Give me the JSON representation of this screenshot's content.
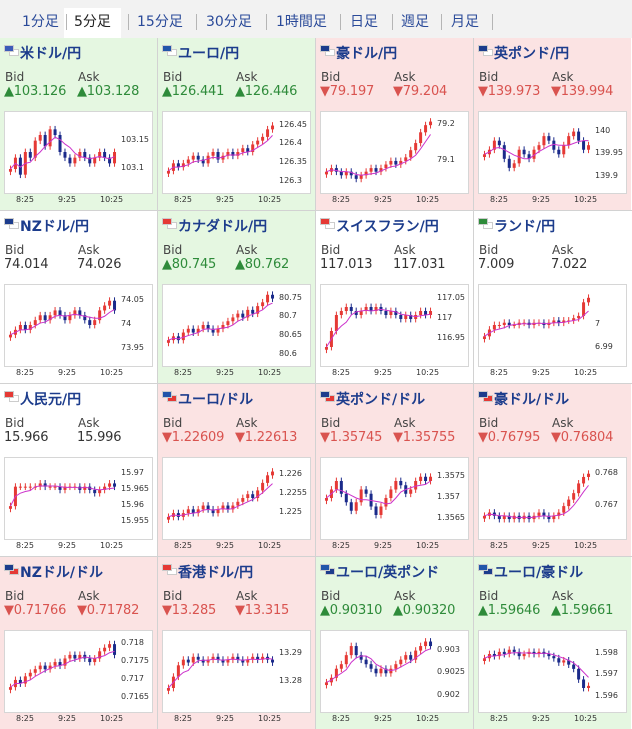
{
  "tabs": [
    {
      "label": "1分足",
      "active": false
    },
    {
      "label": "5分足",
      "active": true
    },
    {
      "label": "15分足",
      "active": false
    },
    {
      "label": "30分足",
      "active": false
    },
    {
      "label": "1時間足",
      "active": false
    },
    {
      "label": "日足",
      "active": false
    },
    {
      "label": "週足",
      "active": false
    },
    {
      "label": "月足",
      "active": false
    }
  ],
  "labels": {
    "bid": "Bid",
    "ask": "Ask"
  },
  "colors": {
    "up_bg": "#e5f7e1",
    "down_bg": "#fbe3e3",
    "up_text": "#2e8b3a",
    "down_text": "#d9534f",
    "candle_up": "#e53935",
    "candle_down": "#1a2a8a",
    "ma_line": "#cc33cc",
    "link": "#1c3c8c"
  },
  "pairs": [
    {
      "name": "米ドル/円",
      "flags": [
        "#3c5bb8",
        "#ffffff"
      ],
      "dir": "up",
      "bid": "▲103.126",
      "ask": "▲103.128",
      "chart_data": {
        "type": "candlestick",
        "x_ticks": [
          "8:25",
          "9:25",
          "10:25"
        ],
        "y_ticks": [
          "103.15",
          "103.1"
        ],
        "y_tick_values": [
          103.15,
          103.1
        ],
        "ylim": [
          103.07,
          103.19
        ],
        "series": [
          103.1,
          103.12,
          103.09,
          103.13,
          103.12,
          103.15,
          103.16,
          103.14,
          103.17,
          103.16,
          103.13,
          103.12,
          103.11,
          103.12,
          103.13,
          103.12,
          103.11,
          103.12,
          103.13,
          103.12,
          103.11,
          103.13
        ]
      }
    },
    {
      "name": "ユーロ/円",
      "flags": [
        "#2255aa",
        "#ffffff"
      ],
      "dir": "up",
      "bid": "▲126.441",
      "ask": "▲126.446",
      "chart_data": {
        "type": "candlestick",
        "x_ticks": [
          "8:25",
          "9:25",
          "10:25"
        ],
        "y_ticks": [
          "126.45",
          "126.4",
          "126.35",
          "126.3"
        ],
        "y_tick_values": [
          126.45,
          126.4,
          126.35,
          126.3
        ],
        "ylim": [
          126.29,
          126.47
        ],
        "series": [
          126.33,
          126.35,
          126.34,
          126.35,
          126.36,
          126.37,
          126.36,
          126.35,
          126.37,
          126.38,
          126.36,
          126.37,
          126.38,
          126.37,
          126.38,
          126.39,
          126.38,
          126.4,
          126.41,
          126.42,
          126.44,
          126.45
        ]
      }
    },
    {
      "name": "豪ドル/円",
      "flags": [
        "#1c3c8c",
        "#ffffff"
      ],
      "dir": "down",
      "bid": "▼79.197",
      "ask": "▼79.204",
      "chart_data": {
        "type": "candlestick",
        "x_ticks": [
          "8:25",
          "9:25",
          "10:25"
        ],
        "y_ticks": [
          "79.2",
          "79.1"
        ],
        "y_tick_values": [
          79.2,
          79.1
        ],
        "ylim": [
          79.03,
          79.22
        ],
        "series": [
          79.07,
          79.08,
          79.07,
          79.06,
          79.07,
          79.06,
          79.05,
          79.06,
          79.07,
          79.08,
          79.07,
          79.08,
          79.09,
          79.1,
          79.09,
          79.1,
          79.11,
          79.13,
          79.15,
          79.18,
          79.2,
          79.21
        ]
      }
    },
    {
      "name": "英ポンド/円",
      "flags": [
        "#1c3c8c",
        "#ffffff"
      ],
      "dir": "down",
      "bid": "▼139.973",
      "ask": "▼139.994",
      "chart_data": {
        "type": "candlestick",
        "x_ticks": [
          "8:25",
          "9:25",
          "10:25"
        ],
        "y_ticks": [
          "140",
          "139.95",
          "139.9"
        ],
        "y_tick_values": [
          140.0,
          139.95,
          139.9
        ],
        "ylim": [
          139.88,
          140.03
        ],
        "series": [
          139.95,
          139.96,
          139.98,
          139.97,
          139.94,
          139.92,
          139.93,
          139.96,
          139.95,
          139.94,
          139.96,
          139.97,
          139.99,
          139.98,
          139.96,
          139.95,
          139.97,
          139.99,
          140.0,
          139.98,
          139.96,
          139.97
        ]
      }
    },
    {
      "name": "NZドル/円",
      "flags": [
        "#1c3c8c",
        "#ffffff"
      ],
      "dir": "flat",
      "bid": "74.014",
      "ask": "74.026",
      "chart_data": {
        "type": "candlestick",
        "x_ticks": [
          "8:25",
          "9:25",
          "10:25"
        ],
        "y_ticks": [
          "74.05",
          "74",
          "73.95"
        ],
        "y_tick_values": [
          74.05,
          74.0,
          73.95
        ],
        "ylim": [
          73.93,
          74.07
        ],
        "series": [
          73.98,
          73.99,
          74.0,
          73.99,
          74.0,
          74.01,
          74.02,
          74.01,
          74.02,
          74.03,
          74.02,
          74.01,
          74.02,
          74.03,
          74.02,
          74.01,
          74.0,
          74.01,
          74.03,
          74.04,
          74.05,
          74.03
        ]
      }
    },
    {
      "name": "カナダドル/円",
      "flags": [
        "#e53935",
        "#ffffff"
      ],
      "dir": "up",
      "bid": "▲80.745",
      "ask": "▲80.762",
      "chart_data": {
        "type": "candlestick",
        "x_ticks": [
          "8:25",
          "9:25",
          "10:25"
        ],
        "y_ticks": [
          "80.75",
          "80.7",
          "80.65",
          "80.6"
        ],
        "y_tick_values": [
          80.75,
          80.7,
          80.65,
          80.6
        ],
        "ylim": [
          80.59,
          80.77
        ],
        "series": [
          80.64,
          80.65,
          80.64,
          80.66,
          80.67,
          80.66,
          80.67,
          80.68,
          80.67,
          80.66,
          80.67,
          80.68,
          80.69,
          80.7,
          80.71,
          80.7,
          80.72,
          80.71,
          80.73,
          80.74,
          80.76,
          80.75
        ]
      }
    },
    {
      "name": "スイスフラン/円",
      "flags": [
        "#e53935",
        "#ffffff"
      ],
      "dir": "flat",
      "bid": "117.013",
      "ask": "117.031",
      "chart_data": {
        "type": "candlestick",
        "x_ticks": [
          "8:25",
          "9:25",
          "10:25"
        ],
        "y_ticks": [
          "117.05",
          "117",
          "116.95"
        ],
        "y_tick_values": [
          117.05,
          117.0,
          116.95
        ],
        "ylim": [
          116.9,
          117.07
        ],
        "series": [
          116.93,
          116.97,
          117.01,
          117.02,
          117.03,
          117.02,
          117.01,
          117.02,
          117.03,
          117.02,
          117.03,
          117.02,
          117.01,
          117.02,
          117.01,
          117.0,
          117.01,
          117.0,
          117.01,
          117.02,
          117.01,
          117.02
        ]
      }
    },
    {
      "name": "ランド/円",
      "flags": [
        "#2e8b3a",
        "#ffffff"
      ],
      "dir": "flat",
      "bid": "7.009",
      "ask": "7.022",
      "chart_data": {
        "type": "candlestick",
        "x_ticks": [
          "8:25",
          "9:25",
          "10:25"
        ],
        "y_ticks": [
          "7",
          "6.99"
        ],
        "y_tick_values": [
          7.0,
          6.99
        ],
        "ylim": [
          6.985,
          7.015
        ],
        "series": [
          6.995,
          6.998,
          7.0,
          7.0,
          7.001,
          7.0,
          7.0,
          7.001,
          7.001,
          7.0,
          7.001,
          7.001,
          7.0,
          7.001,
          7.002,
          7.001,
          7.002,
          7.002,
          7.003,
          7.004,
          7.01,
          7.012
        ]
      }
    },
    {
      "name": "人民元/円",
      "flags": [
        "#e53935",
        "#ffffff"
      ],
      "dir": "flat",
      "bid": "15.966",
      "ask": "15.996",
      "chart_data": {
        "type": "candlestick",
        "x_ticks": [
          "8:25",
          "9:25",
          "10:25"
        ],
        "y_ticks": [
          "15.97",
          "15.965",
          "15.96",
          "15.955"
        ],
        "y_tick_values": [
          15.97,
          15.965,
          15.96,
          15.955
        ],
        "ylim": [
          15.952,
          15.973
        ],
        "series": [
          15.96,
          15.966,
          15.966,
          15.966,
          15.966,
          15.966,
          15.967,
          15.966,
          15.966,
          15.966,
          15.965,
          15.966,
          15.966,
          15.966,
          15.965,
          15.966,
          15.965,
          15.964,
          15.965,
          15.966,
          15.967,
          15.966
        ]
      }
    },
    {
      "name": "ユーロ/ドル",
      "flags": [
        "#2255aa",
        "#e53935"
      ],
      "dir": "down",
      "bid": "▼1.22609",
      "ask": "▼1.22613",
      "chart_data": {
        "type": "candlestick",
        "x_ticks": [
          "8:25",
          "9:25",
          "10:25"
        ],
        "y_ticks": [
          "1.226",
          "1.2255",
          "1.225"
        ],
        "y_tick_values": [
          1.226,
          1.2255,
          1.225
        ],
        "ylim": [
          1.2245,
          1.2263
        ],
        "series": [
          1.2249,
          1.225,
          1.2249,
          1.225,
          1.2251,
          1.225,
          1.2251,
          1.2252,
          1.2251,
          1.225,
          1.2251,
          1.2252,
          1.2251,
          1.2252,
          1.2253,
          1.2254,
          1.2255,
          1.2254,
          1.2256,
          1.2258,
          1.226,
          1.2261
        ]
      }
    },
    {
      "name": "英ポンド/ドル",
      "flags": [
        "#1c3c8c",
        "#e53935"
      ],
      "dir": "down",
      "bid": "▼1.35745",
      "ask": "▼1.35755",
      "chart_data": {
        "type": "candlestick",
        "x_ticks": [
          "8:25",
          "9:25",
          "10:25"
        ],
        "y_ticks": [
          "1.3575",
          "1.357",
          "1.3565"
        ],
        "y_tick_values": [
          1.3575,
          1.357,
          1.3565
        ],
        "ylim": [
          1.3562,
          1.3578
        ],
        "series": [
          1.357,
          1.3572,
          1.3574,
          1.3571,
          1.3569,
          1.3567,
          1.3569,
          1.3572,
          1.3571,
          1.3568,
          1.3566,
          1.3568,
          1.357,
          1.3572,
          1.3574,
          1.3573,
          1.3571,
          1.3572,
          1.3574,
          1.3575,
          1.3574,
          1.3575
        ]
      }
    },
    {
      "name": "豪ドル/ドル",
      "flags": [
        "#1c3c8c",
        "#e53935"
      ],
      "dir": "down",
      "bid": "▼0.76795",
      "ask": "▼0.76804",
      "chart_data": {
        "type": "candlestick",
        "x_ticks": [
          "8:25",
          "9:25",
          "10:25"
        ],
        "y_ticks": [
          "0.768",
          "0.767"
        ],
        "y_tick_values": [
          0.768,
          0.767
        ],
        "ylim": [
          0.7662,
          0.7683
        ],
        "series": [
          0.7667,
          0.7668,
          0.7667,
          0.7666,
          0.7667,
          0.7666,
          0.7667,
          0.7666,
          0.7667,
          0.7666,
          0.7667,
          0.7668,
          0.7667,
          0.7666,
          0.7667,
          0.7668,
          0.767,
          0.7672,
          0.7674,
          0.7677,
          0.7679,
          0.768
        ]
      }
    },
    {
      "name": "NZドル/ドル",
      "flags": [
        "#1c3c8c",
        "#e53935"
      ],
      "dir": "down",
      "bid": "▼0.71766",
      "ask": "▼0.71782",
      "chart_data": {
        "type": "candlestick",
        "x_ticks": [
          "8:25",
          "9:25",
          "10:25"
        ],
        "y_ticks": [
          "0.718",
          "0.7175",
          "0.717",
          "0.7165"
        ],
        "y_tick_values": [
          0.718,
          0.7175,
          0.717,
          0.7165
        ],
        "ylim": [
          0.7163,
          0.7182
        ],
        "series": [
          0.7168,
          0.717,
          0.7169,
          0.7171,
          0.7172,
          0.7173,
          0.7174,
          0.7173,
          0.7174,
          0.7175,
          0.7174,
          0.7176,
          0.7177,
          0.7176,
          0.7177,
          0.7176,
          0.7175,
          0.7176,
          0.7178,
          0.7179,
          0.718,
          0.7177
        ]
      }
    },
    {
      "name": "香港ドル/円",
      "flags": [
        "#e53935",
        "#ffffff"
      ],
      "dir": "down",
      "bid": "▼13.285",
      "ask": "▼13.315",
      "chart_data": {
        "type": "candlestick",
        "x_ticks": [
          "8:25",
          "9:25",
          "10:25"
        ],
        "y_ticks": [
          "13.29",
          "13.28"
        ],
        "y_tick_values": [
          13.29,
          13.28
        ],
        "ylim": [
          13.272,
          13.296
        ],
        "series": [
          13.278,
          13.282,
          13.286,
          13.288,
          13.287,
          13.289,
          13.288,
          13.287,
          13.288,
          13.289,
          13.288,
          13.287,
          13.288,
          13.289,
          13.288,
          13.287,
          13.288,
          13.289,
          13.288,
          13.289,
          13.288,
          13.287
        ]
      }
    },
    {
      "name": "ユーロ/英ポンド",
      "flags": [
        "#2255aa",
        "#1c3c8c"
      ],
      "dir": "up",
      "bid": "▲0.90310",
      "ask": "▲0.90320",
      "chart_data": {
        "type": "candlestick",
        "x_ticks": [
          "8:25",
          "9:25",
          "10:25"
        ],
        "y_ticks": [
          "0.903",
          "0.9025",
          "0.902"
        ],
        "y_tick_values": [
          0.903,
          0.9025,
          0.902
        ],
        "ylim": [
          0.9018,
          0.9033
        ],
        "series": [
          0.9023,
          0.9024,
          0.9026,
          0.9027,
          0.9029,
          0.9031,
          0.9029,
          0.9028,
          0.9027,
          0.9026,
          0.9025,
          0.9026,
          0.9025,
          0.9026,
          0.9027,
          0.9028,
          0.9029,
          0.9028,
          0.903,
          0.9031,
          0.9032,
          0.9031
        ]
      }
    },
    {
      "name": "ユーロ/豪ドル",
      "flags": [
        "#2255aa",
        "#1c3c8c"
      ],
      "dir": "up",
      "bid": "▲1.59646",
      "ask": "▲1.59661",
      "chart_data": {
        "type": "candlestick",
        "x_ticks": [
          "8:25",
          "9:25",
          "10:25"
        ],
        "y_ticks": [
          "1.598",
          "1.597",
          "1.596"
        ],
        "y_tick_values": [
          1.598,
          1.597,
          1.596
        ],
        "ylim": [
          1.5956,
          1.5988
        ],
        "series": [
          1.5978,
          1.598,
          1.5979,
          1.5981,
          1.598,
          1.5982,
          1.5981,
          1.5979,
          1.598,
          1.5981,
          1.598,
          1.5981,
          1.598,
          1.5979,
          1.5978,
          1.5976,
          1.5977,
          1.5975,
          1.5973,
          1.5968,
          1.5964,
          1.5965
        ]
      }
    }
  ]
}
